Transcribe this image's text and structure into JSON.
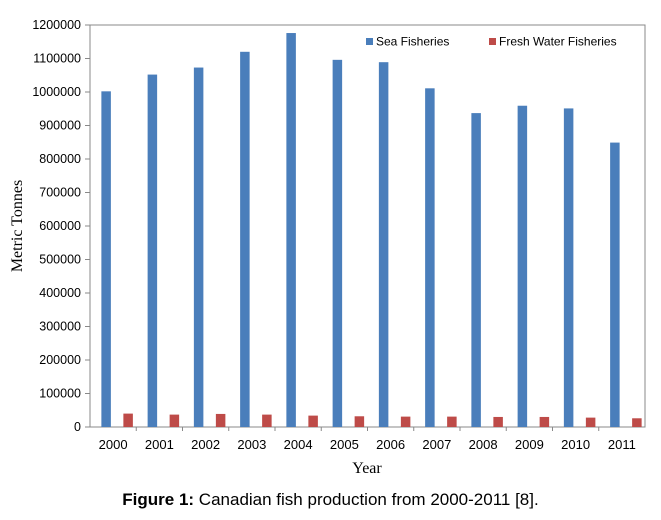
{
  "figure": {
    "caption_label": "Figure 1:",
    "caption_text": " Canadian fish production from 2000-2011 [8]."
  },
  "chart_data": {
    "type": "bar",
    "categories": [
      "2000",
      "2001",
      "2002",
      "2003",
      "2004",
      "2005",
      "2006",
      "2007",
      "2008",
      "2009",
      "2010",
      "2011"
    ],
    "series": [
      {
        "name": "Sea Fisheries",
        "color": "#4a7ebb",
        "values": [
          1002000,
          1052000,
          1073000,
          1120000,
          1176000,
          1096000,
          1089000,
          1011000,
          937000,
          959000,
          951000,
          849000
        ]
      },
      {
        "name": "Fresh Water Fisheries",
        "color": "#be4b48",
        "values": [
          40000,
          37000,
          39000,
          37000,
          34000,
          32000,
          31000,
          31000,
          30000,
          30000,
          28000,
          26000
        ]
      }
    ],
    "title": "",
    "xlabel": "Year",
    "ylabel": "Metric Tonnes",
    "ylim": [
      0,
      1200000
    ],
    "yticks": [
      "0",
      "100000",
      "200000",
      "300000",
      "400000",
      "500000",
      "600000",
      "700000",
      "800000",
      "900000",
      "1000000",
      "1100000",
      "1200000"
    ],
    "grid": false,
    "legend": "top-right"
  }
}
